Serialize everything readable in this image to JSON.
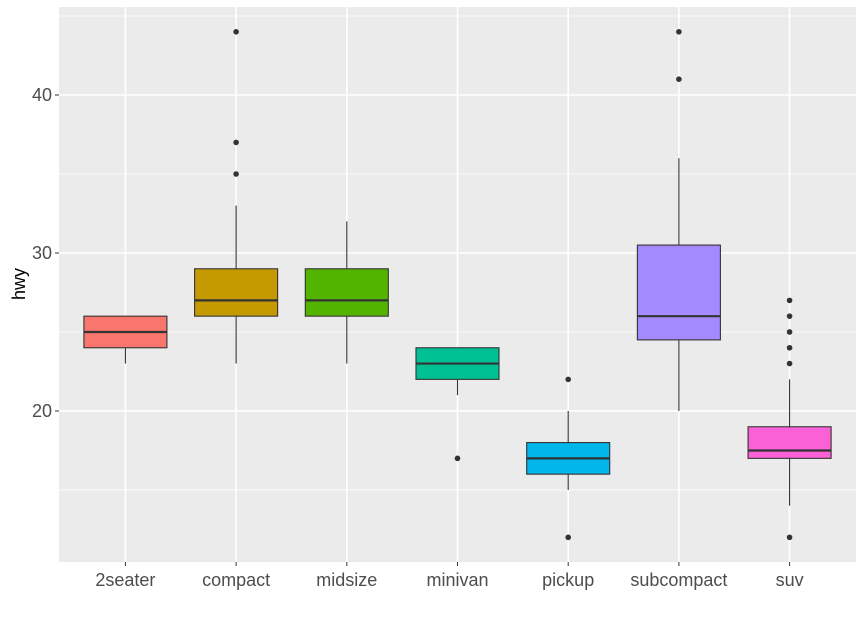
{
  "chart_data": {
    "type": "boxplot",
    "title": "",
    "xlabel": "",
    "ylabel": "hwy",
    "ylim": [
      10.44,
      45.57
    ],
    "yticks": [
      20,
      30,
      40
    ],
    "grid": true,
    "legend": null,
    "categories": [
      "2seater",
      "compact",
      "midsize",
      "minivan",
      "pickup",
      "subcompact",
      "suv"
    ],
    "series": [
      {
        "name": "2seater",
        "color": "#F8766D",
        "lower_whisker": 23,
        "q1": 24,
        "median": 25,
        "q3": 26,
        "upper_whisker": 26,
        "outliers": []
      },
      {
        "name": "compact",
        "color": "#C49A00",
        "lower_whisker": 23,
        "q1": 26,
        "median": 27,
        "q3": 29,
        "upper_whisker": 33,
        "outliers": [
          35,
          37,
          44
        ]
      },
      {
        "name": "midsize",
        "color": "#53B400",
        "lower_whisker": 23,
        "q1": 26,
        "median": 27,
        "q3": 29,
        "upper_whisker": 32,
        "outliers": []
      },
      {
        "name": "minivan",
        "color": "#00C094",
        "lower_whisker": 21,
        "q1": 22,
        "median": 23,
        "q3": 24,
        "upper_whisker": 24,
        "outliers": [
          17
        ]
      },
      {
        "name": "pickup",
        "color": "#00B6EB",
        "lower_whisker": 15,
        "q1": 16,
        "median": 17,
        "q3": 18,
        "upper_whisker": 20,
        "outliers": [
          12,
          22
        ]
      },
      {
        "name": "subcompact",
        "color": "#A58AFF",
        "lower_whisker": 20,
        "q1": 24.5,
        "median": 26,
        "q3": 30.5,
        "upper_whisker": 36,
        "outliers": [
          41,
          44
        ]
      },
      {
        "name": "suv",
        "color": "#FB61D7",
        "lower_whisker": 14,
        "q1": 17,
        "median": 17.5,
        "q3": 19,
        "upper_whisker": 22,
        "outliers": [
          12,
          23,
          24,
          25,
          26,
          27
        ]
      }
    ]
  },
  "axes": {
    "y_title": "hwy",
    "y_tick_labels": [
      "20",
      "30",
      "40"
    ],
    "x_tick_labels": [
      "2seater",
      "compact",
      "midsize",
      "minivan",
      "pickup",
      "subcompact",
      "suv"
    ]
  },
  "style": {
    "panel_bg": "#EBEBEB",
    "grid_color": "#FFFFFF",
    "box_outline": "#333333",
    "point_color": "#333333"
  }
}
